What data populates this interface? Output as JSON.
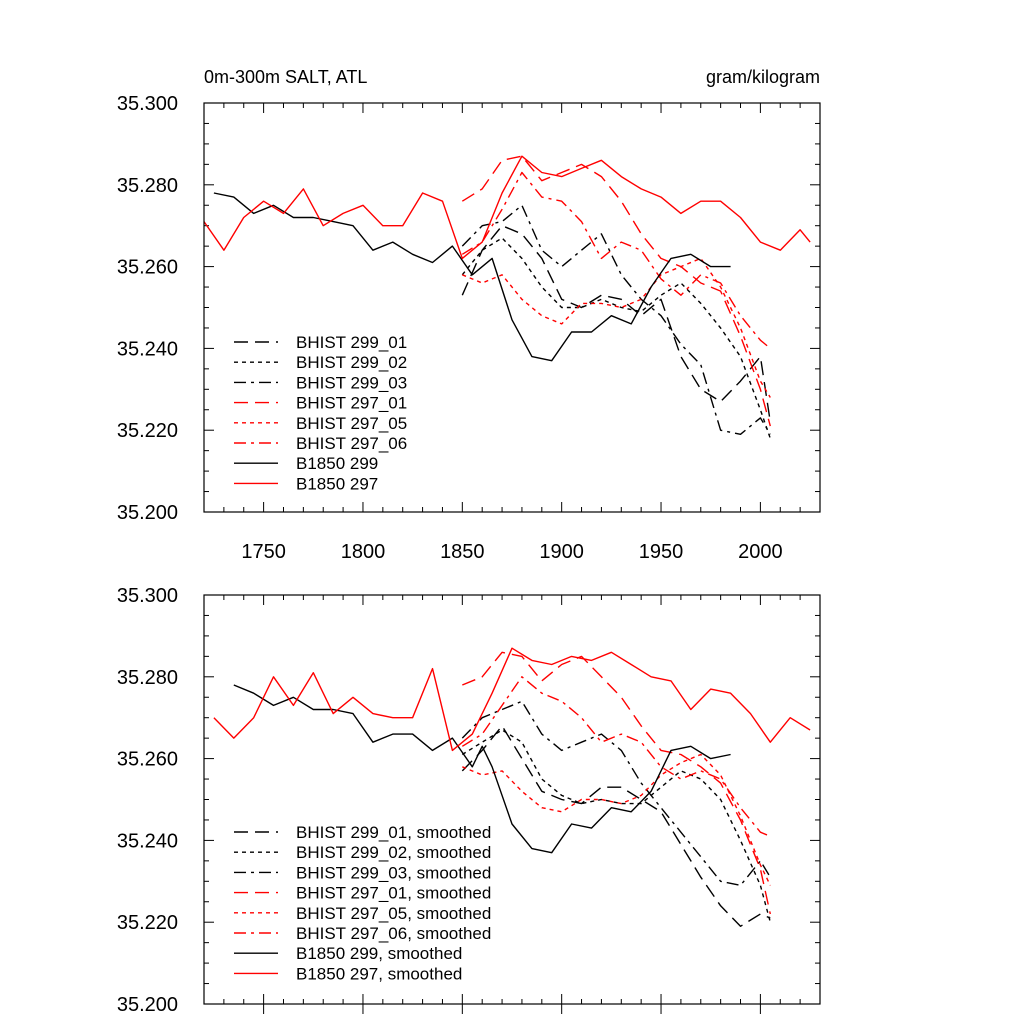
{
  "chart_data": [
    {
      "type": "line",
      "title_left": "0m-300m SALT, ATL",
      "title_right": "gram/kilogram",
      "xlim": [
        1720,
        2030
      ],
      "ylim": [
        35.2,
        35.3
      ],
      "xticks": [
        1750,
        1800,
        1850,
        1900,
        1950,
        2000
      ],
      "xtick_labels": [
        "1750",
        "1800",
        "1850",
        "1900",
        "1950",
        "2000"
      ],
      "yticks": [
        35.2,
        35.22,
        35.24,
        35.26,
        35.28,
        35.3
      ],
      "ytick_labels": [
        "35.200",
        "35.220",
        "35.240",
        "35.260",
        "35.280",
        "35.300"
      ],
      "legend_position": "bottom-left",
      "series": [
        {
          "name": "BHIST 299_01",
          "color": "#000000",
          "dash": "long",
          "x": [
            1850,
            1860,
            1870,
            1880,
            1890,
            1900,
            1910,
            1920,
            1930,
            1940,
            1950,
            1960,
            1970,
            1980,
            1990,
            2000,
            2005
          ],
          "y": [
            35.253,
            35.264,
            35.27,
            35.268,
            35.262,
            35.252,
            35.25,
            35.253,
            35.252,
            35.248,
            35.252,
            35.238,
            35.23,
            35.227,
            35.232,
            35.238,
            35.222
          ]
        },
        {
          "name": "BHIST 299_02",
          "color": "#000000",
          "dash": "dot",
          "x": [
            1850,
            1860,
            1870,
            1880,
            1890,
            1900,
            1910,
            1920,
            1930,
            1940,
            1950,
            1960,
            1970,
            1980,
            1990,
            2000,
            2005
          ],
          "y": [
            35.258,
            35.264,
            35.267,
            35.262,
            35.255,
            35.25,
            35.25,
            35.252,
            35.25,
            35.249,
            35.253,
            35.256,
            35.251,
            35.245,
            35.238,
            35.225,
            35.218
          ]
        },
        {
          "name": "BHIST 299_03",
          "color": "#000000",
          "dash": "dashdot",
          "x": [
            1850,
            1860,
            1870,
            1880,
            1890,
            1900,
            1910,
            1920,
            1930,
            1940,
            1950,
            1960,
            1970,
            1980,
            1990,
            2000,
            2005
          ],
          "y": [
            35.265,
            35.27,
            35.271,
            35.275,
            35.264,
            35.26,
            35.264,
            35.268,
            35.258,
            35.252,
            35.248,
            35.241,
            35.236,
            35.22,
            35.219,
            35.223,
            35.219
          ]
        },
        {
          "name": "BHIST 297_01",
          "color": "#ff0000",
          "dash": "long",
          "x": [
            1850,
            1860,
            1870,
            1880,
            1890,
            1900,
            1910,
            1920,
            1930,
            1940,
            1950,
            1960,
            1970,
            1980,
            1990,
            2000,
            2005
          ],
          "y": [
            35.276,
            35.279,
            35.286,
            35.287,
            35.281,
            35.283,
            35.285,
            35.282,
            35.276,
            35.268,
            35.262,
            35.26,
            35.256,
            35.254,
            35.243,
            35.23,
            35.221
          ]
        },
        {
          "name": "BHIST 297_05",
          "color": "#ff0000",
          "dash": "dot",
          "x": [
            1850,
            1860,
            1870,
            1880,
            1890,
            1900,
            1910,
            1920,
            1930,
            1940,
            1950,
            1960,
            1970,
            1980,
            1990,
            2000,
            2005
          ],
          "y": [
            35.258,
            35.256,
            35.258,
            35.252,
            35.248,
            35.246,
            35.251,
            35.251,
            35.25,
            35.252,
            35.258,
            35.26,
            35.262,
            35.255,
            35.245,
            35.232,
            35.228
          ]
        },
        {
          "name": "BHIST 297_06",
          "color": "#ff0000",
          "dash": "dashdot",
          "x": [
            1850,
            1860,
            1870,
            1880,
            1890,
            1900,
            1910,
            1920,
            1930,
            1940,
            1950,
            1960,
            1970,
            1980,
            1990,
            2000,
            2005
          ],
          "y": [
            35.263,
            35.266,
            35.274,
            35.283,
            35.277,
            35.276,
            35.271,
            35.262,
            35.266,
            35.264,
            35.257,
            35.253,
            35.258,
            35.256,
            35.248,
            35.242,
            35.24
          ]
        },
        {
          "name": "B1850 299",
          "color": "#000000",
          "dash": "solid",
          "x": [
            1725,
            1735,
            1745,
            1755,
            1765,
            1775,
            1785,
            1795,
            1805,
            1815,
            1825,
            1835,
            1845,
            1855,
            1865,
            1875,
            1885,
            1895,
            1905,
            1915,
            1925,
            1935,
            1945,
            1955,
            1965,
            1975,
            1985
          ],
          "y": [
            35.278,
            35.277,
            35.273,
            35.275,
            35.272,
            35.272,
            35.271,
            35.27,
            35.264,
            35.266,
            35.263,
            35.261,
            35.265,
            35.258,
            35.262,
            35.247,
            35.238,
            35.237,
            35.244,
            35.244,
            35.248,
            35.246,
            35.255,
            35.262,
            35.263,
            35.26,
            35.26
          ]
        },
        {
          "name": "B1850 297",
          "color": "#ff0000",
          "dash": "solid",
          "x": [
            1720,
            1730,
            1740,
            1750,
            1760,
            1770,
            1780,
            1790,
            1800,
            1810,
            1820,
            1830,
            1840,
            1850,
            1860,
            1870,
            1880,
            1890,
            1900,
            1910,
            1920,
            1930,
            1940,
            1950,
            1960,
            1970,
            1980,
            1990,
            2000,
            2010,
            2020,
            2025
          ],
          "y": [
            35.271,
            35.264,
            35.272,
            35.276,
            35.273,
            35.279,
            35.27,
            35.273,
            35.275,
            35.27,
            35.27,
            35.278,
            35.276,
            35.262,
            35.266,
            35.278,
            35.287,
            35.283,
            35.282,
            35.284,
            35.286,
            35.282,
            35.279,
            35.277,
            35.273,
            35.276,
            35.276,
            35.272,
            35.266,
            35.264,
            35.269,
            35.266
          ]
        }
      ]
    },
    {
      "type": "line",
      "xlim": [
        1720,
        2030
      ],
      "ylim": [
        35.2,
        35.3
      ],
      "xticks": [
        1750,
        1800,
        1850,
        1900,
        1950,
        2000
      ],
      "yticks": [
        35.2,
        35.22,
        35.24,
        35.26,
        35.28,
        35.3
      ],
      "ytick_labels": [
        "35.200",
        "35.220",
        "35.240",
        "35.260",
        "35.280",
        "35.300"
      ],
      "legend_position": "bottom-left",
      "series": [
        {
          "name": "BHIST 299_01, smoothed",
          "color": "#000000",
          "dash": "long",
          "x": [
            1850,
            1860,
            1870,
            1880,
            1890,
            1900,
            1910,
            1920,
            1930,
            1940,
            1950,
            1960,
            1970,
            1980,
            1990,
            2000,
            2005
          ],
          "y": [
            35.257,
            35.262,
            35.268,
            35.26,
            35.252,
            35.25,
            35.249,
            35.253,
            35.253,
            35.25,
            35.247,
            35.239,
            35.231,
            35.224,
            35.219,
            35.222,
            35.221
          ]
        },
        {
          "name": "BHIST 299_02, smoothed",
          "color": "#000000",
          "dash": "dot",
          "x": [
            1850,
            1860,
            1870,
            1880,
            1890,
            1900,
            1910,
            1920,
            1930,
            1940,
            1950,
            1960,
            1970,
            1980,
            1990,
            2000,
            2005
          ],
          "y": [
            35.261,
            35.264,
            35.267,
            35.264,
            35.255,
            35.251,
            35.249,
            35.25,
            35.249,
            35.249,
            35.253,
            35.257,
            35.255,
            35.25,
            35.24,
            35.229,
            35.22
          ]
        },
        {
          "name": "BHIST 299_03, smoothed",
          "color": "#000000",
          "dash": "dashdot",
          "x": [
            1850,
            1860,
            1870,
            1880,
            1890,
            1900,
            1910,
            1920,
            1930,
            1940,
            1950,
            1960,
            1970,
            1980,
            1990,
            2000,
            2005
          ],
          "y": [
            35.265,
            35.27,
            35.272,
            35.274,
            35.266,
            35.262,
            35.264,
            35.266,
            35.262,
            35.254,
            35.248,
            35.242,
            35.236,
            35.23,
            35.229,
            35.235,
            35.231
          ]
        },
        {
          "name": "BHIST 297_01, smoothed",
          "color": "#ff0000",
          "dash": "long",
          "x": [
            1850,
            1860,
            1870,
            1880,
            1890,
            1900,
            1910,
            1920,
            1930,
            1940,
            1950,
            1960,
            1970,
            1980,
            1990,
            2000,
            2005
          ],
          "y": [
            35.278,
            35.28,
            35.286,
            35.285,
            35.279,
            35.283,
            35.285,
            35.28,
            35.275,
            35.268,
            35.262,
            35.261,
            35.258,
            35.254,
            35.245,
            35.233,
            35.222
          ]
        },
        {
          "name": "BHIST 297_05, smoothed",
          "color": "#ff0000",
          "dash": "dot",
          "x": [
            1850,
            1860,
            1870,
            1880,
            1890,
            1900,
            1910,
            1920,
            1930,
            1940,
            1950,
            1960,
            1970,
            1980,
            1990,
            2000,
            2005
          ],
          "y": [
            35.258,
            35.256,
            35.257,
            35.252,
            35.248,
            35.247,
            35.25,
            35.25,
            35.249,
            35.251,
            35.256,
            35.259,
            35.261,
            35.256,
            35.246,
            35.234,
            35.229
          ]
        },
        {
          "name": "BHIST 297_06, smoothed",
          "color": "#ff0000",
          "dash": "dashdot",
          "x": [
            1850,
            1860,
            1870,
            1880,
            1890,
            1900,
            1910,
            1920,
            1930,
            1940,
            1950,
            1960,
            1970,
            1980,
            1990,
            2000,
            2005
          ],
          "y": [
            35.263,
            35.266,
            35.273,
            35.28,
            35.276,
            35.274,
            35.27,
            35.264,
            35.266,
            35.264,
            35.258,
            35.255,
            35.257,
            35.255,
            35.248,
            35.242,
            35.241
          ]
        },
        {
          "name": "B1850 299, smoothed",
          "color": "#000000",
          "dash": "solid",
          "x": [
            1735,
            1745,
            1755,
            1765,
            1775,
            1785,
            1795,
            1805,
            1815,
            1825,
            1835,
            1845,
            1855,
            1860,
            1865,
            1875,
            1885,
            1895,
            1905,
            1915,
            1925,
            1935,
            1945,
            1955,
            1965,
            1975,
            1985
          ],
          "y": [
            35.278,
            35.276,
            35.273,
            35.275,
            35.272,
            35.272,
            35.271,
            35.264,
            35.266,
            35.266,
            35.262,
            35.265,
            35.258,
            35.263,
            35.258,
            35.244,
            35.238,
            35.237,
            35.244,
            35.243,
            35.248,
            35.247,
            35.252,
            35.262,
            35.263,
            35.26,
            35.261
          ]
        },
        {
          "name": "B1850 297, smoothed",
          "color": "#ff0000",
          "dash": "solid",
          "x": [
            1725,
            1735,
            1745,
            1755,
            1765,
            1775,
            1785,
            1795,
            1805,
            1815,
            1825,
            1835,
            1845,
            1855,
            1865,
            1875,
            1885,
            1895,
            1905,
            1915,
            1925,
            1935,
            1945,
            1955,
            1965,
            1975,
            1985,
            1995,
            2005,
            2015,
            2025
          ],
          "y": [
            35.27,
            35.265,
            35.27,
            35.28,
            35.273,
            35.281,
            35.271,
            35.275,
            35.271,
            35.27,
            35.27,
            35.282,
            35.262,
            35.266,
            35.276,
            35.287,
            35.284,
            35.283,
            35.285,
            35.284,
            35.286,
            35.283,
            35.28,
            35.279,
            35.272,
            35.277,
            35.276,
            35.271,
            35.264,
            35.27,
            35.267
          ]
        }
      ]
    }
  ]
}
